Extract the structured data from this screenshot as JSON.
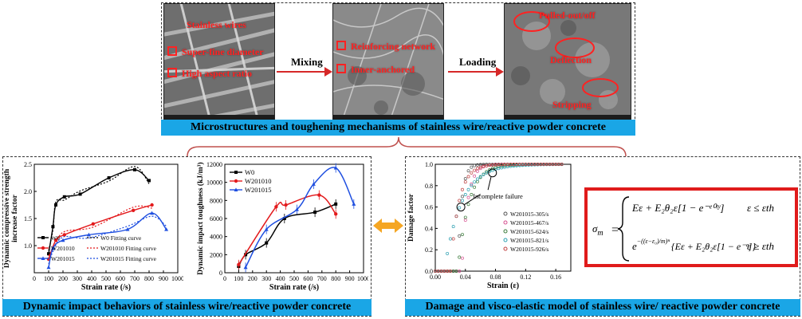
{
  "top": {
    "images": [
      {
        "labels": [
          "Stainless wires",
          "Super-fine diameter",
          "High aspect ratio"
        ]
      },
      {
        "labels": [
          "Reinforcing network",
          "Inner-anchored"
        ]
      },
      {
        "labels": [
          "Pulled-out/off",
          "Deflection",
          "Stripping"
        ]
      }
    ],
    "arrow_labels": [
      "Mixing",
      "Loading"
    ],
    "caption": "Microstructures and toughening mechanisms of stainless wire/reactive powder concrete"
  },
  "left_caption": "Dynamic impact behaviors of stainless wire/reactive powder concrete",
  "right_caption": "Damage and  visco-elastic model of stainless wire/ reactive powder concrete",
  "colors": {
    "black": "#000000",
    "red": "#e31a1c",
    "blue": "#1f4fe0",
    "caption_bg": "#1aa6e6",
    "accent_orange": "#f5a623"
  },
  "chart_data": [
    {
      "type": "line",
      "xlabel": "Strain rate (/s)",
      "ylabel": "Dynamic compressive strength increase factor",
      "xlim": [
        0,
        1000
      ],
      "ylim": [
        0.5,
        2.5
      ],
      "xticks": [
        "0",
        "100",
        "200",
        "300",
        "400",
        "500",
        "600",
        "700",
        "800",
        "900",
        "1000"
      ],
      "yticks": [
        "1.0",
        "1.5",
        "2.0",
        "2.5"
      ],
      "legend": [
        "W0",
        "W0 Fitting curve",
        "W201010",
        "W201010 Fitting curve",
        "W201015",
        "W201015 Fitting curve"
      ],
      "series": [
        {
          "name": "W0",
          "x": [
            100,
            130,
            150,
            210,
            320,
            520,
            700,
            800
          ],
          "y": [
            0.85,
            1.35,
            1.75,
            1.9,
            1.95,
            2.25,
            2.4,
            2.2
          ]
        },
        {
          "name": "W201010",
          "x": [
            100,
            150,
            210,
            410,
            690,
            820
          ],
          "y": [
            0.75,
            1.1,
            1.2,
            1.4,
            1.65,
            1.75
          ]
        },
        {
          "name": "W201015",
          "x": [
            100,
            130,
            200,
            380,
            650,
            820,
            920
          ],
          "y": [
            0.6,
            0.95,
            1.1,
            1.2,
            1.3,
            1.6,
            1.3
          ]
        }
      ]
    },
    {
      "type": "line",
      "xlabel": "Strain rate (/s)",
      "ylabel": "Dynamic impact toughness (kJ/m³)",
      "xlim": [
        0,
        1000
      ],
      "ylim": [
        0,
        12000
      ],
      "xticks": [
        "0",
        "100",
        "200",
        "300",
        "400",
        "500",
        "600",
        "700",
        "800",
        "900",
        "1000"
      ],
      "yticks": [
        "0",
        "2000",
        "4000",
        "6000",
        "8000",
        "10000",
        "12000"
      ],
      "legend": [
        "W0",
        "W201010",
        "W201015"
      ],
      "series": [
        {
          "name": "W0",
          "x": [
            100,
            150,
            300,
            430,
            650,
            800
          ],
          "y": [
            700,
            2000,
            3300,
            6000,
            6700,
            7600
          ]
        },
        {
          "name": "W201010",
          "x": [
            100,
            370,
            440,
            680,
            800
          ],
          "y": [
            900,
            7300,
            7500,
            8600,
            6500
          ]
        },
        {
          "name": "W201015",
          "x": [
            150,
            300,
            520,
            640,
            800,
            930
          ],
          "y": [
            600,
            4800,
            7000,
            9800,
            11600,
            7600
          ]
        }
      ]
    },
    {
      "type": "scatter",
      "xlabel": "Strain (ε)",
      "ylabel": "Damage factor",
      "xlim": [
        0,
        0.18
      ],
      "ylim": [
        0,
        1.0
      ],
      "xticks": [
        "0.00",
        "0.04",
        "0.08",
        "0.12",
        "0.16"
      ],
      "yticks": [
        "0.0",
        "0.2",
        "0.4",
        "0.6",
        "0.8",
        "1.0"
      ],
      "annotation": "Incomplete failure",
      "legend": [
        "W201015-305/s",
        "W201015-467/s",
        "W201015-624/s",
        "W201015-821/s",
        "W201015-926/s"
      ],
      "series": [
        {
          "name": "W201015-305/s",
          "params": {
            "e0": 0.03,
            "k": 200
          }
        },
        {
          "name": "W201015-467/s",
          "params": {
            "e0": 0.035,
            "k": 130
          }
        },
        {
          "name": "W201015-624/s",
          "params": {
            "e0": 0.03,
            "k": 70
          }
        },
        {
          "name": "W201015-821/s",
          "params": {
            "e0": 0.012,
            "k": 45
          }
        },
        {
          "name": "W201015-926/s",
          "params": {
            "e0": 0.02,
            "k": 90
          }
        }
      ]
    }
  ],
  "equation": {
    "lhs": "σ",
    "lhs_sub": "m",
    "case1": "Eε + E₂θ₂ε̇[1 − e⁻ᵉ⁰ᵗʸ]",
    "case2_prefix": "e",
    "case2": "{Eε + E₂θ₂ε̇[1 − e⁻ᵉ]}",
    "cond1": "ε ≤ εth",
    "cond2": "ε ≥ εth"
  }
}
